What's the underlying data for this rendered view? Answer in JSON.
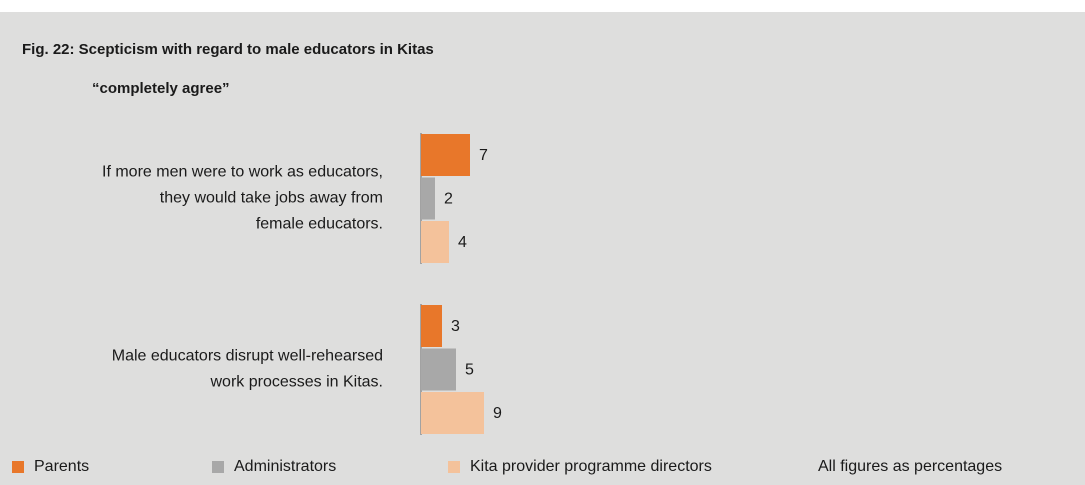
{
  "chart_data": {
    "type": "bar",
    "orientation": "horizontal",
    "title": "Fig. 22: Scepticism with regard to male educators in Kitas",
    "subtitle": "“completely agree”",
    "categories": [
      [
        "If more men were to work as educators,",
        "they would take jobs away from",
        "female educators."
      ],
      [
        "Male educators disrupt well-rehearsed",
        "work processes in Kitas."
      ]
    ],
    "series": [
      {
        "name": "Parents",
        "color": "#e8772a",
        "values": [
          7,
          3
        ]
      },
      {
        "name": "Administrators",
        "color": "#a8a8a8",
        "values": [
          2,
          5
        ]
      },
      {
        "name": "Kita provider programme directors",
        "color": "#f4c29b",
        "values": [
          4,
          9
        ]
      }
    ],
    "note": "All figures as percentages"
  }
}
